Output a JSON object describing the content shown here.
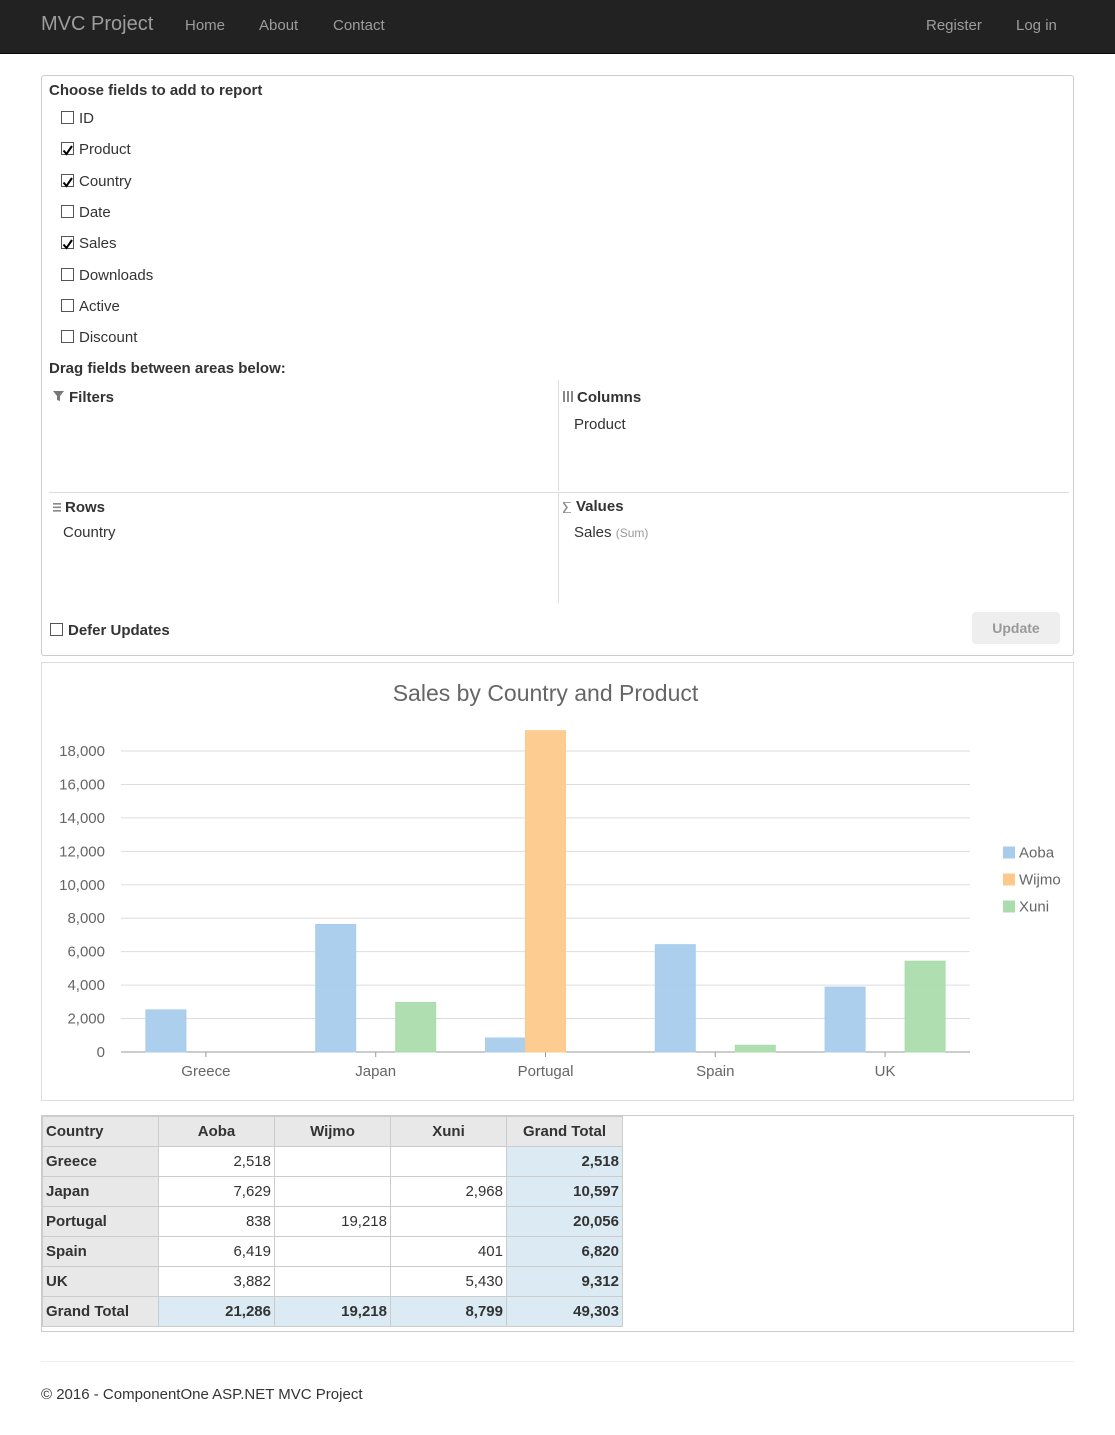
{
  "navbar": {
    "brand": "MVC Project",
    "links": [
      "Home",
      "About",
      "Contact"
    ],
    "right_links": [
      "Register",
      "Log in"
    ]
  },
  "panel": {
    "title": "Choose fields to add to report",
    "fields": [
      {
        "label": "ID",
        "checked": false
      },
      {
        "label": "Product",
        "checked": true
      },
      {
        "label": "Country",
        "checked": true
      },
      {
        "label": "Date",
        "checked": false
      },
      {
        "label": "Sales",
        "checked": true
      },
      {
        "label": "Downloads",
        "checked": false
      },
      {
        "label": "Active",
        "checked": false
      },
      {
        "label": "Discount",
        "checked": false
      }
    ],
    "drag_title": "Drag fields between areas below:",
    "areas": {
      "filters": {
        "title": "Filters",
        "items": []
      },
      "columns": {
        "title": "Columns",
        "items": [
          "Product"
        ]
      },
      "rows": {
        "title": "Rows",
        "items": [
          "Country"
        ]
      },
      "values": {
        "title": "Values",
        "items": [
          {
            "name": "Sales",
            "aggregate": "(Sum)"
          }
        ]
      }
    },
    "defer": {
      "label": "Defer Updates",
      "checked": false
    },
    "update_button": "Update"
  },
  "chart_data": {
    "type": "bar",
    "title": "Sales by Country and Product",
    "categories": [
      "Greece",
      "Japan",
      "Portugal",
      "Spain",
      "UK"
    ],
    "series": [
      {
        "name": "Aoba",
        "color": "#a9cced",
        "values": [
          2518,
          7629,
          838,
          6419,
          3882
        ]
      },
      {
        "name": "Wijmo",
        "color": "#fdc98a",
        "values": [
          null,
          null,
          19218,
          null,
          null
        ]
      },
      {
        "name": "Xuni",
        "color": "#abdcad",
        "values": [
          null,
          2968,
          null,
          401,
          5430
        ]
      }
    ],
    "ylim": [
      0,
      20000
    ],
    "yticks": [
      0,
      {
        "value": 2000,
        "label": "2,000"
      },
      {
        "value": 4000,
        "label": "4,000"
      },
      {
        "value": 6000,
        "label": "6,000"
      },
      {
        "value": 8000,
        "label": "8,000"
      },
      {
        "value": 10000,
        "label": "10,000"
      },
      {
        "value": 12000,
        "label": "12,000"
      },
      {
        "value": 14000,
        "label": "14,000"
      },
      {
        "value": 16000,
        "label": "16,000"
      },
      {
        "value": 18000,
        "label": "18,000"
      }
    ],
    "grid": true,
    "legend": "right"
  },
  "table": {
    "header": [
      "Country",
      "Aoba",
      "Wijmo",
      "Xuni",
      "Grand Total"
    ],
    "rows": [
      [
        "Greece",
        "2,518",
        null,
        null,
        "2,518"
      ],
      [
        "Japan",
        "7,629",
        null,
        "2,968",
        "10,597"
      ],
      [
        "Portugal",
        "838",
        "19,218",
        null,
        "20,056"
      ],
      [
        "Spain",
        "6,419",
        null,
        "401",
        "6,820"
      ],
      [
        "UK",
        "3,882",
        null,
        "5,430",
        "9,312"
      ],
      [
        "Grand Total",
        "21,286",
        "19,218",
        "8,799",
        "49,303"
      ]
    ]
  },
  "footer": "© 2016 - ComponentOne ASP.NET MVC Project"
}
